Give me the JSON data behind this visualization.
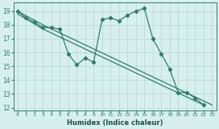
{
  "xlabel": "Humidex (Indice chaleur)",
  "background_color": "#d8f0ed",
  "grid_color": "#b8dbd7",
  "line_color": "#2e7d6e",
  "xlim": [
    -0.5,
    23.5
  ],
  "ylim": [
    11.8,
    19.6
  ],
  "yticks": [
    12,
    13,
    14,
    15,
    16,
    17,
    18,
    19
  ],
  "xticks": [
    0,
    1,
    2,
    3,
    4,
    5,
    6,
    7,
    8,
    9,
    10,
    11,
    12,
    13,
    14,
    15,
    16,
    17,
    18,
    19,
    20,
    21,
    22,
    23
  ],
  "jagged_x": [
    0,
    1,
    2,
    3,
    4,
    5,
    6,
    7,
    8,
    9,
    10,
    11,
    12,
    13,
    14,
    15,
    16,
    17,
    18,
    19,
    20,
    21,
    22
  ],
  "jagged_y": [
    19.0,
    18.5,
    18.2,
    17.8,
    17.8,
    17.7,
    15.9,
    15.1,
    15.6,
    15.3,
    18.4,
    18.5,
    18.3,
    18.7,
    19.0,
    19.2,
    17.0,
    15.9,
    14.8,
    13.1,
    13.1,
    12.7,
    12.2
  ],
  "line1_x": [
    0,
    3,
    23
  ],
  "line1_y": [
    19.0,
    18.0,
    12.2
  ],
  "line2_x": [
    0,
    3,
    22
  ],
  "line2_y": [
    18.8,
    17.7,
    12.2
  ]
}
